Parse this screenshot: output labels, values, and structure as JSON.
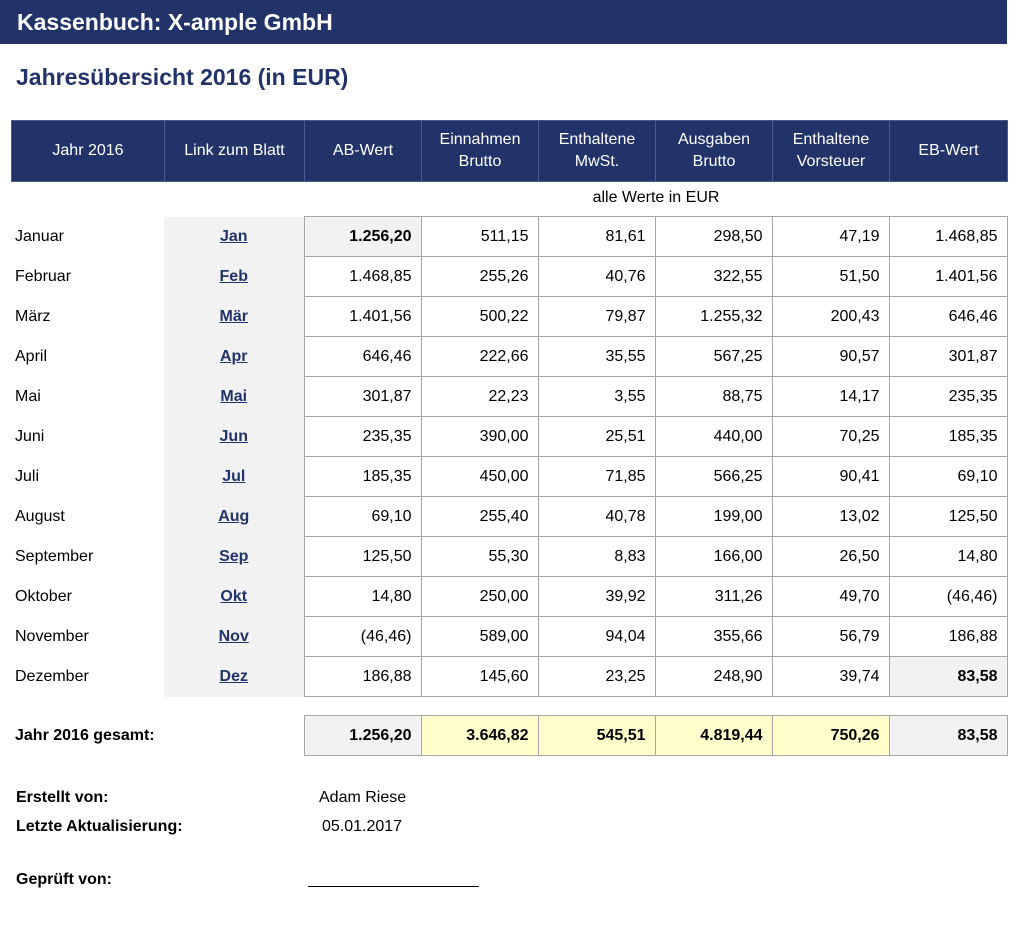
{
  "title": "Kassenbuch: X-ample GmbH",
  "subtitle": "Jahresübersicht 2016 (in EUR)",
  "headers": [
    "Jahr 2016",
    "Link zum Blatt",
    "AB-Wert",
    "Einnahmen\nBrutto",
    "Enthaltene\nMwSt.",
    "Ausgaben\nBrutto",
    "Enthaltene\nVorsteuer",
    "EB-Wert"
  ],
  "note": "alle Werte in EUR",
  "months": [
    {
      "name": "Januar",
      "link": "Jan",
      "ab": "1.256,20",
      "ein": "511,15",
      "mwst": "81,61",
      "aus": "298,50",
      "vst": "47,19",
      "eb": "1.468,85"
    },
    {
      "name": "Februar",
      "link": "Feb",
      "ab": "1.468,85",
      "ein": "255,26",
      "mwst": "40,76",
      "aus": "322,55",
      "vst": "51,50",
      "eb": "1.401,56"
    },
    {
      "name": "März",
      "link": "Mär",
      "ab": "1.401,56",
      "ein": "500,22",
      "mwst": "79,87",
      "aus": "1.255,32",
      "vst": "200,43",
      "eb": "646,46"
    },
    {
      "name": "April",
      "link": "Apr",
      "ab": "646,46",
      "ein": "222,66",
      "mwst": "35,55",
      "aus": "567,25",
      "vst": "90,57",
      "eb": "301,87"
    },
    {
      "name": "Mai",
      "link": "Mai",
      "ab": "301,87",
      "ein": "22,23",
      "mwst": "3,55",
      "aus": "88,75",
      "vst": "14,17",
      "eb": "235,35"
    },
    {
      "name": "Juni",
      "link": "Jun",
      "ab": "235,35",
      "ein": "390,00",
      "mwst": "25,51",
      "aus": "440,00",
      "vst": "70,25",
      "eb": "185,35"
    },
    {
      "name": "Juli",
      "link": "Jul",
      "ab": "185,35",
      "ein": "450,00",
      "mwst": "71,85",
      "aus": "566,25",
      "vst": "90,41",
      "eb": "69,10"
    },
    {
      "name": "August",
      "link": "Aug",
      "ab": "69,10",
      "ein": "255,40",
      "mwst": "40,78",
      "aus": "199,00",
      "vst": "13,02",
      "eb": "125,50"
    },
    {
      "name": "September",
      "link": "Sep",
      "ab": "125,50",
      "ein": "55,30",
      "mwst": "8,83",
      "aus": "166,00",
      "vst": "26,50",
      "eb": "14,80"
    },
    {
      "name": "Oktober",
      "link": "Okt",
      "ab": "14,80",
      "ein": "250,00",
      "mwst": "39,92",
      "aus": "311,26",
      "vst": "49,70",
      "eb": "(46,46)"
    },
    {
      "name": "November",
      "link": "Nov",
      "ab": "(46,46)",
      "ein": "589,00",
      "mwst": "94,04",
      "aus": "355,66",
      "vst": "56,79",
      "eb": "186,88"
    },
    {
      "name": "Dezember",
      "link": "Dez",
      "ab": "186,88",
      "ein": "145,60",
      "mwst": "23,25",
      "aus": "248,90",
      "vst": "39,74",
      "eb": "83,58"
    }
  ],
  "total": {
    "label": "Jahr 2016 gesamt:",
    "ab": "1.256,20",
    "ein": "3.646,82",
    "mwst": "545,51",
    "aus": "4.819,44",
    "vst": "750,26",
    "eb": "83,58"
  },
  "footer": {
    "created_label": "Erstellt von:",
    "created_value": "Adam Riese",
    "updated_label": "Letzte Aktualisierung:",
    "updated_value": "05.01.2017",
    "checked_label": "Geprüft von:"
  },
  "colors": {
    "header_bg": "#213369",
    "link": "#213369",
    "highlight_yellow": "#ffffcc",
    "highlight_grey": "#f2f2f2"
  }
}
